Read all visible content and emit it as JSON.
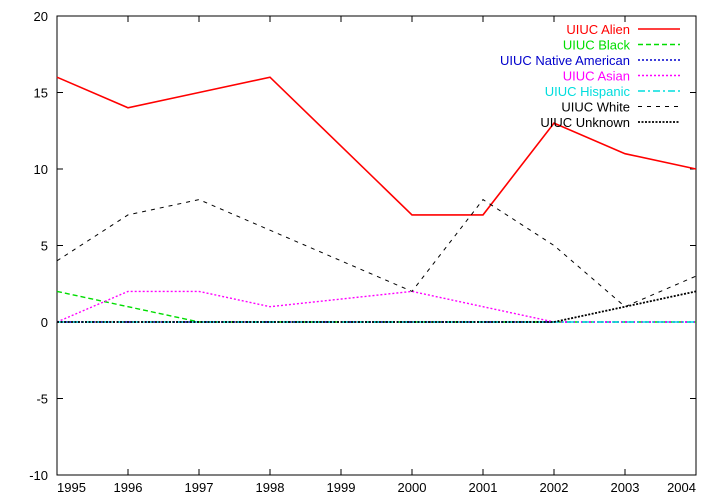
{
  "chart_data": {
    "type": "line",
    "title": "",
    "xlabel": "",
    "ylabel": "",
    "xlim": [
      1995,
      2004
    ],
    "ylim": [
      -10,
      20
    ],
    "x": [
      1995,
      1996,
      1997,
      1998,
      1999,
      2000,
      2001,
      2002,
      2003,
      2004
    ],
    "xticks": [
      "1995",
      "1996",
      "1997",
      "1998",
      "1999",
      "2000",
      "2001",
      "2002",
      "2003",
      "2004"
    ],
    "yticks": [
      "-10",
      "-5",
      "0",
      "5",
      "10",
      "15",
      "20"
    ],
    "grid": false,
    "legend_position": "top-right",
    "series": [
      {
        "name": "UIUC Alien",
        "color": "#ff0000",
        "style": "solid",
        "values": [
          16,
          14,
          15,
          16,
          null,
          7,
          7,
          13,
          11,
          10
        ]
      },
      {
        "name": "UIUC Black",
        "color": "#00dd00",
        "style": "dashed",
        "values": [
          2,
          null,
          0,
          0,
          0,
          0,
          0,
          0,
          0,
          0
        ]
      },
      {
        "name": "UIUC Native American",
        "color": "#0000cc",
        "style": "dotted",
        "values": [
          0,
          0,
          0,
          0,
          0,
          0,
          0,
          0,
          0,
          0
        ]
      },
      {
        "name": "UIUC Asian",
        "color": "#ff00ff",
        "style": "dotted",
        "values": [
          0,
          2,
          2,
          1,
          null,
          2,
          1,
          0,
          0,
          0
        ]
      },
      {
        "name": "UIUC Hispanic",
        "color": "#00dddd",
        "style": "dashdot",
        "values": [
          0,
          0,
          0,
          0,
          0,
          0,
          0,
          0,
          0,
          0
        ]
      },
      {
        "name": "UIUC White",
        "color": "#000000",
        "style": "dashed-sparse",
        "values": [
          4,
          7,
          8,
          6,
          null,
          2,
          8,
          5,
          1,
          3
        ]
      },
      {
        "name": "UIUC Unknown",
        "color": "#000000",
        "style": "dotted-dense",
        "values": [
          0,
          0,
          0,
          0,
          0,
          0,
          0,
          0,
          1,
          2
        ]
      }
    ]
  }
}
